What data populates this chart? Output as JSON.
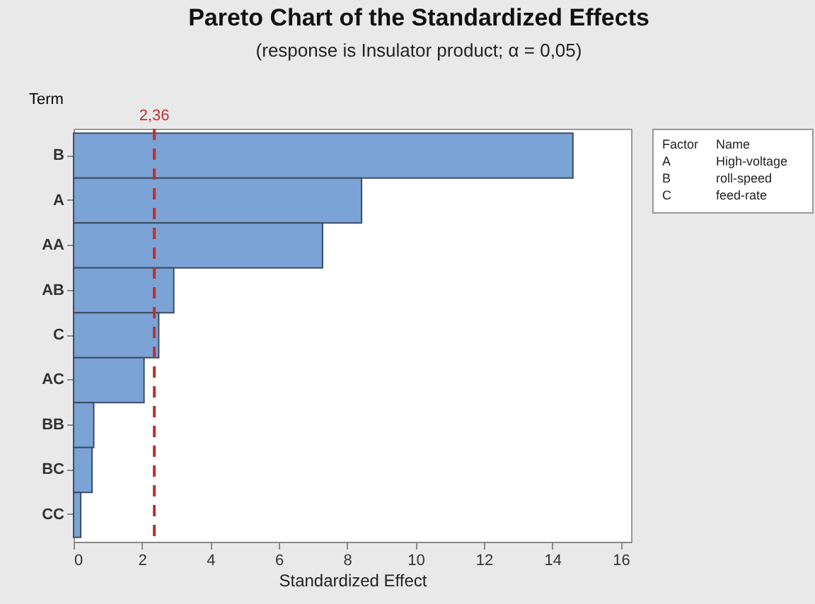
{
  "chart_data": {
    "type": "bar",
    "orientation": "horizontal",
    "title": "Pareto Chart of the Standardized Effects",
    "subtitle": "(response is Insulator product; α = 0,05)",
    "xlabel": "Standardized Effect",
    "ylabel": "Term",
    "categories": [
      "B",
      "A",
      "AA",
      "AB",
      "C",
      "AC",
      "BB",
      "BC",
      "CC"
    ],
    "values": [
      14.6,
      8.42,
      7.28,
      2.93,
      2.49,
      2.06,
      0.59,
      0.54,
      0.21
    ],
    "color": "#7ba3d6",
    "xlim": [
      0,
      16.3
    ],
    "xticks": [
      0,
      2,
      4,
      6,
      8,
      10,
      12,
      14,
      16
    ],
    "grid": false,
    "ref_lines": [
      {
        "axis": "x",
        "value": 2.36,
        "label": "2,36",
        "color": "#c0302b",
        "line_style": "dashed"
      }
    ],
    "annotations": [
      "Factor",
      "Name",
      "A",
      "High-voltage",
      "B",
      "roll-speed",
      "C",
      "feed-rate"
    ]
  }
}
